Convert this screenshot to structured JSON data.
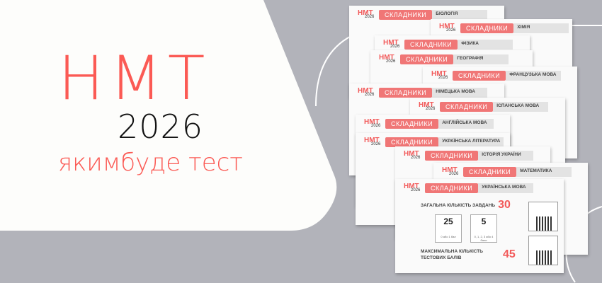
{
  "banner": {
    "title": "НМТ",
    "year": "2026",
    "subtitle": "якимбуде тест"
  },
  "colors": {
    "accent": "#fb5a54",
    "background": "#b2b3ba",
    "panel": "#fdfdfb",
    "pill": "#f07676"
  },
  "card_common": {
    "logo": "НМТ",
    "logo_year": "2026",
    "pill": "СКЛАДНИКИ"
  },
  "cards": [
    {
      "subject": "БІОЛОГІЯ"
    },
    {
      "subject": "ХІМІЯ"
    },
    {
      "subject": "ФІЗИКА"
    },
    {
      "subject": "ГЕОГРАФІЯ"
    },
    {
      "subject": "ФРАНЦУЗЬКА МОВА"
    },
    {
      "subject": "НІМЕЦЬКА МОВА"
    },
    {
      "subject": "ІСПАНСЬКА МОВА"
    },
    {
      "subject": "АНГЛІЙСЬКА МОВА"
    },
    {
      "subject": "УКРАЇНСЬКА ЛІТЕРАТУРА"
    },
    {
      "subject": "ІСТОРІЯ УКРАЇНИ"
    },
    {
      "subject": "МАТЕМАТИКА"
    }
  ],
  "front_card": {
    "subject": "УКРАЇНСЬКА МОВА",
    "total_label": "ЗАГАЛЬНА КІЛЬКІСТЬ ЗАВДАНЬ",
    "total_value": "30",
    "box1_value": "25",
    "box1_note": "0 або 1 бал",
    "box2_value": "5",
    "box2_note": "0, 1, 2, 3 або 4 бали",
    "max_label": "МАКСИМАЛЬНА КІЛЬКІСТЬ ТЕСТОВИХ БАЛІВ",
    "max_value": "45"
  }
}
